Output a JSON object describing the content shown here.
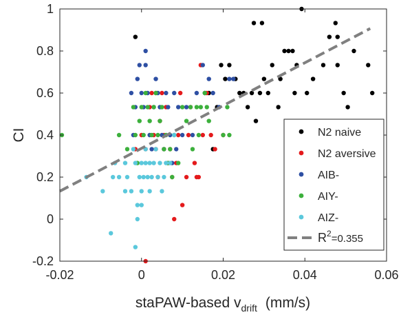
{
  "chart_data": {
    "type": "scatter",
    "xlabel": {
      "main": "staPAW-based v",
      "sub": "drift",
      "unit": "(mm/s)"
    },
    "ylabel": "CI",
    "xlim": [
      -0.02,
      0.06
    ],
    "ylim": [
      -0.2,
      1.0
    ],
    "xticks": [
      -0.02,
      0,
      0.02,
      0.04,
      0.06
    ],
    "xtick_labels": [
      "-0.02",
      "0",
      "0.02",
      "0.04",
      "0.06"
    ],
    "yticks": [
      -0.2,
      0,
      0.2,
      0.4,
      0.6,
      0.8,
      1.0
    ],
    "ytick_labels": [
      "-0.2",
      "0",
      "0.2",
      "0.4",
      "0.6",
      "0.8",
      "1"
    ],
    "grid": false,
    "legend_position": "bottom-right",
    "series": [
      {
        "name": "N2 naive",
        "color": "#000000",
        "points": [
          [
            -0.0015,
            0.867
          ],
          [
            0.0165,
            0.6
          ],
          [
            0.0175,
            0.333
          ],
          [
            0.0155,
            0.6
          ],
          [
            0.0185,
            0.533
          ],
          [
            0.0195,
            0.733
          ],
          [
            0.0205,
            0.667
          ],
          [
            0.0215,
            0.733
          ],
          [
            0.023,
            0.667
          ],
          [
            0.025,
            0.6
          ],
          [
            0.026,
            0.533
          ],
          [
            0.027,
            0.6
          ],
          [
            0.0275,
            0.933
          ],
          [
            0.028,
            0.467
          ],
          [
            0.029,
            0.6
          ],
          [
            0.0295,
            0.933
          ],
          [
            0.03,
            0.667
          ],
          [
            0.031,
            0.6
          ],
          [
            0.032,
            0.733
          ],
          [
            0.0335,
            0.533
          ],
          [
            0.034,
            0.667
          ],
          [
            0.035,
            0.8
          ],
          [
            0.036,
            0.8
          ],
          [
            0.037,
            0.8
          ],
          [
            0.0375,
            0.6
          ],
          [
            0.038,
            0.733
          ],
          [
            0.0392,
            1.0
          ],
          [
            0.0405,
            0.6
          ],
          [
            0.042,
            0.667
          ],
          [
            0.0445,
            0.733
          ],
          [
            0.046,
            0.867
          ],
          [
            0.0475,
            0.933
          ],
          [
            0.048,
            0.867
          ],
          [
            0.048,
            0.733
          ],
          [
            0.0495,
            0.6
          ],
          [
            0.0505,
            0.533
          ],
          [
            0.052,
            0.8
          ],
          [
            0.0555,
            0.733
          ],
          [
            0.0565,
            0.6
          ],
          [
            0.024,
            0.6
          ]
        ]
      },
      {
        "name": "N2 aversive",
        "color": "#e41a1c",
        "points": [
          [
            -0.0015,
            0.333
          ],
          [
            0.0,
            0.4
          ],
          [
            0.001,
            0.333
          ],
          [
            0.001,
            -0.2
          ],
          [
            0.002,
            0.533
          ],
          [
            0.0025,
            0.6
          ],
          [
            0.003,
            0.4
          ],
          [
            0.0035,
            0.333
          ],
          [
            0.004,
            0.2
          ],
          [
            0.0045,
            0.467
          ],
          [
            0.005,
            0.6
          ],
          [
            0.0055,
            0.4
          ],
          [
            0.006,
            0.533
          ],
          [
            0.0065,
            0.267
          ],
          [
            0.007,
            0.333
          ],
          [
            0.0075,
            0.2
          ],
          [
            0.008,
            0.0
          ],
          [
            0.0085,
            0.267
          ],
          [
            0.009,
            0.4
          ],
          [
            0.0095,
            0.6
          ],
          [
            0.01,
            0.067
          ],
          [
            0.011,
            0.2
          ],
          [
            0.0115,
            0.4
          ],
          [
            0.012,
            0.533
          ],
          [
            0.013,
            0.267
          ],
          [
            0.0135,
            0.2
          ],
          [
            0.014,
            0.2
          ],
          [
            0.0145,
            0.733
          ],
          [
            0.015,
            0.4
          ],
          [
            0.016,
            0.6
          ],
          [
            0.017,
            0.4
          ],
          [
            0.018,
            0.333
          ],
          [
            0.02,
            0.4
          ],
          [
            0.0035,
            0.6
          ],
          [
            0.0055,
            0.333
          ]
        ]
      },
      {
        "name": "AIB-",
        "color": "#2e4fa3",
        "points": [
          [
            -0.0025,
            0.6
          ],
          [
            -0.0015,
            0.533
          ],
          [
            -0.001,
            0.667
          ],
          [
            -0.0005,
            0.733
          ],
          [
            0.0,
            0.6
          ],
          [
            0.0005,
            0.533
          ],
          [
            0.001,
            0.8
          ],
          [
            0.001,
            0.733
          ],
          [
            0.0015,
            0.6
          ],
          [
            0.002,
            0.4
          ],
          [
            0.0025,
            0.333
          ],
          [
            0.003,
            0.533
          ],
          [
            0.0035,
            0.667
          ],
          [
            0.004,
            0.6
          ],
          [
            0.0045,
            0.533
          ],
          [
            0.005,
            0.4
          ],
          [
            0.0055,
            0.333
          ],
          [
            0.006,
            0.6
          ],
          [
            0.0065,
            0.533
          ],
          [
            0.007,
            0.4
          ],
          [
            0.0075,
            0.267
          ],
          [
            0.008,
            0.6
          ],
          [
            0.0085,
            0.333
          ],
          [
            0.009,
            0.533
          ],
          [
            0.01,
            0.4
          ],
          [
            0.011,
            0.533
          ],
          [
            0.0125,
            0.4
          ],
          [
            0.0135,
            0.6
          ],
          [
            0.015,
            0.733
          ],
          [
            0.0165,
            0.667
          ],
          [
            0.0175,
            0.6
          ],
          [
            0.019,
            0.533
          ],
          [
            0.0215,
            0.667
          ],
          [
            0.0225,
            0.667
          ],
          [
            -0.002,
            0.4
          ]
        ]
      },
      {
        "name": "AIY-",
        "color": "#3cb03c",
        "points": [
          [
            -0.0195,
            0.4
          ],
          [
            -0.0055,
            0.4
          ],
          [
            -0.0035,
            0.333
          ],
          [
            -0.002,
            0.533
          ],
          [
            -0.0015,
            0.4
          ],
          [
            -0.001,
            0.267
          ],
          [
            -0.0005,
            0.467
          ],
          [
            0.0,
            0.533
          ],
          [
            0.0005,
            0.4
          ],
          [
            0.001,
            0.6
          ],
          [
            0.0015,
            0.533
          ],
          [
            0.002,
            0.467
          ],
          [
            0.0025,
            0.4
          ],
          [
            0.003,
            0.533
          ],
          [
            0.0035,
            0.6
          ],
          [
            0.004,
            0.4
          ],
          [
            0.0045,
            0.467
          ],
          [
            0.005,
            0.533
          ],
          [
            0.0055,
            0.333
          ],
          [
            0.006,
            0.4
          ],
          [
            0.0065,
            0.267
          ],
          [
            0.007,
            0.333
          ],
          [
            0.0075,
            0.2
          ],
          [
            0.008,
            0.4
          ],
          [
            0.009,
            0.267
          ],
          [
            0.01,
            0.533
          ],
          [
            0.011,
            0.467
          ],
          [
            0.0125,
            0.333
          ],
          [
            0.0135,
            0.533
          ],
          [
            0.014,
            0.4
          ],
          [
            0.0145,
            0.533
          ],
          [
            0.0155,
            0.6
          ],
          [
            0.016,
            0.533
          ],
          [
            0.0165,
            0.467
          ],
          [
            0.02,
            0.4
          ],
          [
            0.021,
            0.533
          ],
          [
            0.0215,
            0.4
          ],
          [
            0.012,
            0.533
          ]
        ]
      },
      {
        "name": "AIZ-",
        "color": "#5bc8dc",
        "points": [
          [
            -0.0135,
            0.2
          ],
          [
            -0.0095,
            0.133
          ],
          [
            -0.0075,
            -0.067
          ],
          [
            -0.007,
            0.2
          ],
          [
            -0.0055,
            0.2
          ],
          [
            -0.004,
            0.267
          ],
          [
            -0.0035,
            0.2
          ],
          [
            -0.0025,
            0.133
          ],
          [
            -0.002,
            0.333
          ],
          [
            -0.0015,
            0.267
          ],
          [
            -0.0015,
            -0.133
          ],
          [
            -0.001,
            0.0
          ],
          [
            -0.001,
            0.067
          ],
          [
            -0.0005,
            0.2
          ],
          [
            0.0,
            0.267
          ],
          [
            0.0,
            0.133
          ],
          [
            0.0,
            0.067
          ],
          [
            0.0005,
            0.2
          ],
          [
            0.001,
            0.267
          ],
          [
            0.001,
            0.333
          ],
          [
            0.0015,
            0.2
          ],
          [
            0.002,
            0.267
          ],
          [
            0.002,
            0.133
          ],
          [
            0.0025,
            0.2
          ],
          [
            0.003,
            0.267
          ],
          [
            0.0035,
            0.333
          ],
          [
            0.004,
            0.2
          ],
          [
            0.0045,
            0.267
          ],
          [
            0.005,
            0.133
          ],
          [
            0.0055,
            0.2
          ],
          [
            0.006,
            0.267
          ],
          [
            0.007,
            0.267
          ],
          [
            0.008,
            0.4
          ],
          [
            -0.0065,
            0.267
          ],
          [
            -0.004,
            0.133
          ]
        ]
      }
    ],
    "fit_line": {
      "name_prefix": "R",
      "name_sup": "2",
      "name_suffix": "=0.355",
      "color": "#808080",
      "style": "dashed",
      "x": [
        -0.02,
        0.056
      ],
      "y": [
        0.133,
        0.907
      ]
    }
  }
}
